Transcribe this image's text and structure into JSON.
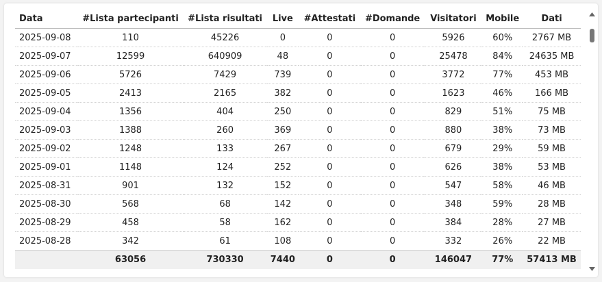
{
  "table": {
    "columns": [
      "Data",
      "#Lista partecipanti",
      "#Lista risultati",
      "Live",
      "#Attestati",
      "#Domande",
      "Visitatori",
      "Mobile",
      "Dati"
    ],
    "rows": [
      [
        "2025-09-08",
        "110",
        "45226",
        "0",
        "0",
        "0",
        "5926",
        "60%",
        "2767 MB"
      ],
      [
        "2025-09-07",
        "12599",
        "640909",
        "48",
        "0",
        "0",
        "25478",
        "84%",
        "24635 MB"
      ],
      [
        "2025-09-06",
        "5726",
        "7429",
        "739",
        "0",
        "0",
        "3772",
        "77%",
        "453 MB"
      ],
      [
        "2025-09-05",
        "2413",
        "2165",
        "382",
        "0",
        "0",
        "1623",
        "46%",
        "166 MB"
      ],
      [
        "2025-09-04",
        "1356",
        "404",
        "250",
        "0",
        "0",
        "829",
        "51%",
        "75 MB"
      ],
      [
        "2025-09-03",
        "1388",
        "260",
        "369",
        "0",
        "0",
        "880",
        "38%",
        "73 MB"
      ],
      [
        "2025-09-02",
        "1248",
        "133",
        "267",
        "0",
        "0",
        "679",
        "29%",
        "59 MB"
      ],
      [
        "2025-09-01",
        "1148",
        "124",
        "252",
        "0",
        "0",
        "626",
        "38%",
        "53 MB"
      ],
      [
        "2025-08-31",
        "901",
        "132",
        "152",
        "0",
        "0",
        "547",
        "58%",
        "46 MB"
      ],
      [
        "2025-08-30",
        "568",
        "68",
        "142",
        "0",
        "0",
        "348",
        "59%",
        "28 MB"
      ],
      [
        "2025-08-29",
        "458",
        "58",
        "162",
        "0",
        "0",
        "384",
        "28%",
        "27 MB"
      ],
      [
        "2025-08-28",
        "342",
        "61",
        "108",
        "0",
        "0",
        "332",
        "26%",
        "22 MB"
      ]
    ],
    "totals": [
      "",
      "63056",
      "730330",
      "7440",
      "0",
      "0",
      "146047",
      "77%",
      "57413 MB"
    ]
  },
  "scrollbar": {
    "up_icon": "triangle-up-icon",
    "down_icon": "triangle-down-icon",
    "thumb_color": "#777777"
  }
}
